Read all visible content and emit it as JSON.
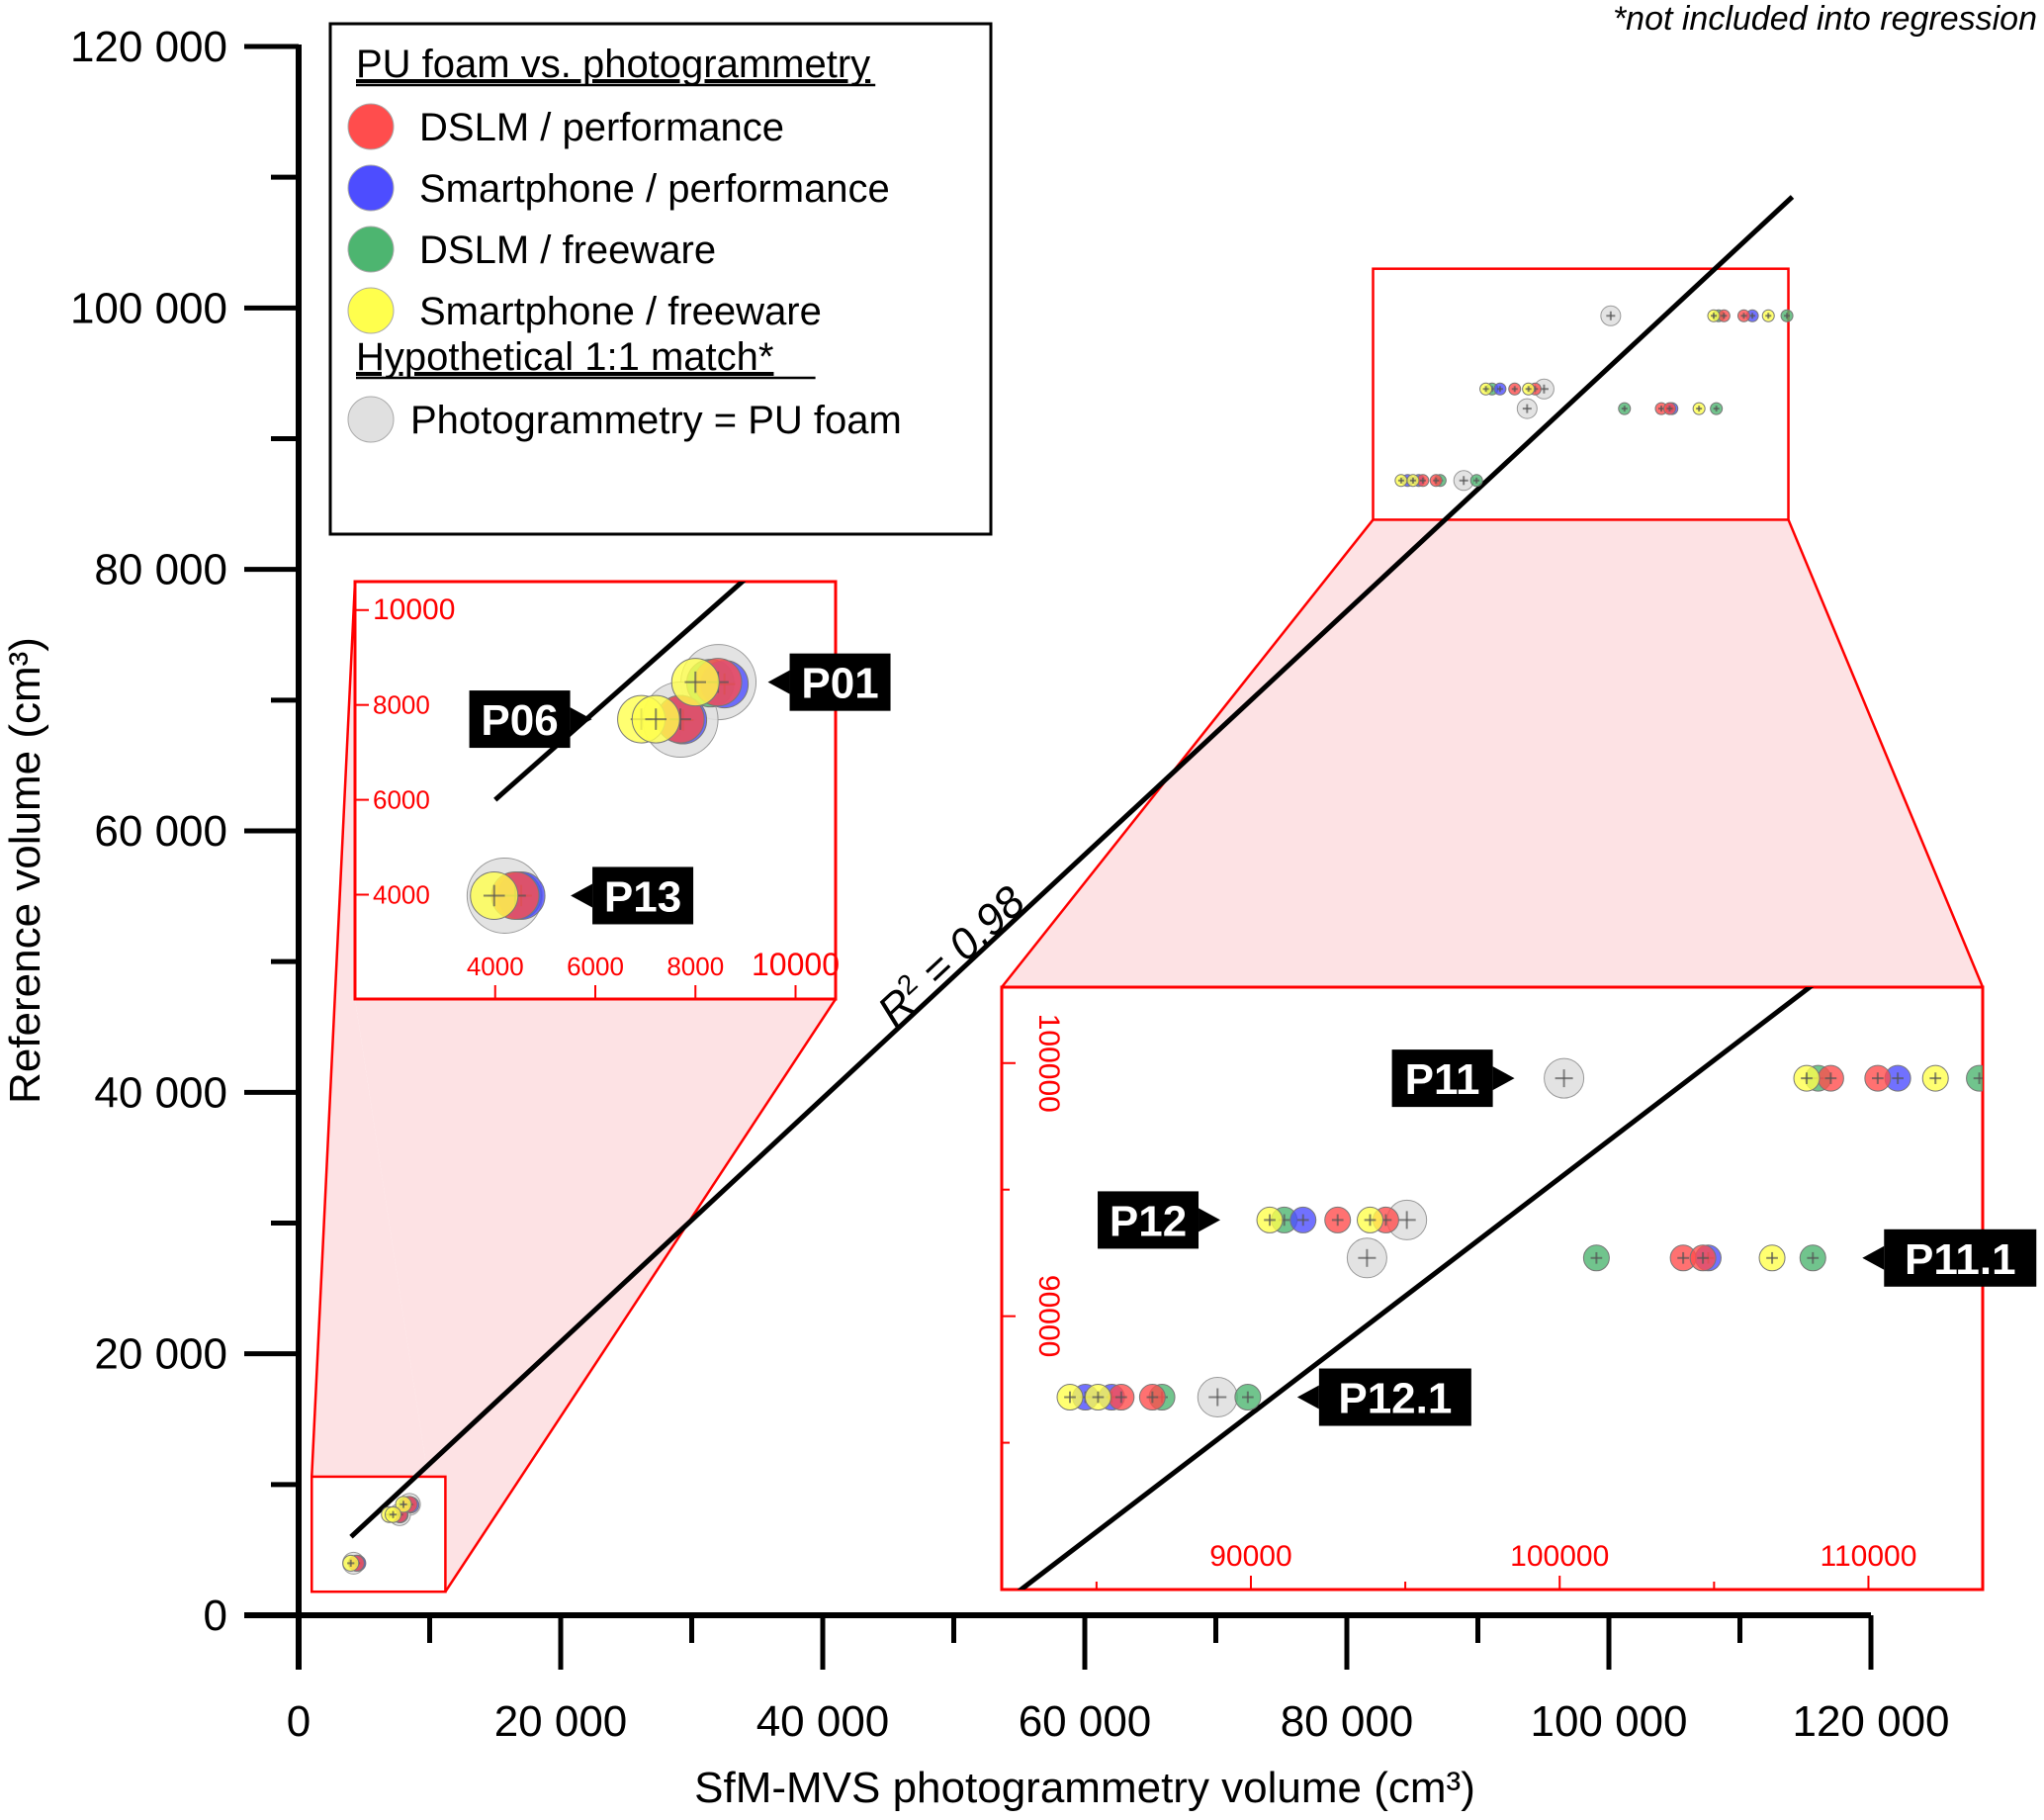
{
  "chart_data": {
    "type": "scatter",
    "title": "",
    "note": "*not included into regression",
    "xlabel": "SfM-MVS photogrammetry volume (cm³)",
    "ylabel": "Reference volume (cm³)",
    "xlim": [
      0,
      120000
    ],
    "ylim": [
      0,
      120000
    ],
    "x_ticks": [
      0,
      20000,
      40000,
      60000,
      80000,
      100000,
      120000
    ],
    "x_tick_labels": [
      "0",
      "20 000",
      "40 000",
      "60 000",
      "80 000",
      "100 000",
      "120 000"
    ],
    "y_ticks": [
      0,
      20000,
      40000,
      60000,
      80000,
      100000,
      120000
    ],
    "y_tick_labels": [
      "0",
      "20 000",
      "40 000",
      "60 000",
      "80 000",
      "100 000",
      "120 000"
    ],
    "minor_tick_step": 10000,
    "grid": false,
    "legend": {
      "placement": "top-left",
      "groups": [
        {
          "title": "PU foam vs. photogrammetry",
          "entries": [
            {
              "label": "DSLM / performance",
              "color": "#ff4d4d",
              "series": "dslm_perf"
            },
            {
              "label": "Smartphone / performance",
              "color": "#4d4dff",
              "series": "phone_perf"
            },
            {
              "label": "DSLM / freeware",
              "color": "#4db570",
              "series": "dslm_free"
            },
            {
              "label": "Smartphone / freeware",
              "color": "#ffff4d",
              "series": "phone_free"
            }
          ]
        },
        {
          "title": "Hypothetical 1:1 match*",
          "entries": [
            {
              "label": "Photogrammetry = PU foam",
              "color": "#e0e0e0",
              "series": "hypothetical"
            }
          ]
        }
      ]
    },
    "regression": {
      "label_prefix": "R",
      "label_sup": "2",
      "label_suffix": " = 0.98",
      "r2": 0.98,
      "from": [
        4000,
        6000
      ],
      "to": [
        114000,
        108500
      ]
    },
    "series": [
      {
        "name": "DSLM / performance",
        "key": "dslm_perf",
        "color": "#ff4d4d",
        "points": [
          {
            "id": "P01",
            "x": 8450,
            "y": 8480
          },
          {
            "id": "P06",
            "x": 7700,
            "y": 7700
          },
          {
            "id": "P13",
            "x": 4400,
            "y": 3980
          },
          {
            "id": "P11",
            "x": 108780,
            "y": 99400
          },
          {
            "id": "P11",
            "x": 110300,
            "y": 99400
          },
          {
            "id": "P11.1",
            "x": 104000,
            "y": 92300
          },
          {
            "id": "P11.1",
            "x": 104640,
            "y": 92300
          },
          {
            "id": "P12",
            "x": 92810,
            "y": 93800
          },
          {
            "id": "P12",
            "x": 94370,
            "y": 93800
          },
          {
            "id": "P12.1",
            "x": 85800,
            "y": 86800
          },
          {
            "id": "P12.1",
            "x": 86810,
            "y": 86800
          }
        ]
      },
      {
        "name": "Smartphone / performance",
        "key": "phone_perf",
        "color": "#4d4dff",
        "points": [
          {
            "id": "P01",
            "x": 8580,
            "y": 8440
          },
          {
            "id": "P06",
            "x": 7750,
            "y": 7680
          },
          {
            "id": "P13",
            "x": 4520,
            "y": 3980
          },
          {
            "id": "P11",
            "x": 110950,
            "y": 99400
          },
          {
            "id": "P11.1",
            "x": 104810,
            "y": 92300
          },
          {
            "id": "P12",
            "x": 91690,
            "y": 93800
          },
          {
            "id": "P12.1",
            "x": 84640,
            "y": 86800
          },
          {
            "id": "P12.1",
            "x": 85490,
            "y": 86800
          }
        ]
      },
      {
        "name": "DSLM / freeware",
        "key": "dslm_free",
        "color": "#4db570",
        "points": [
          {
            "id": "P01",
            "x": 8300,
            "y": 8460
          },
          {
            "id": "P06",
            "x": 7700,
            "y": 7700
          },
          {
            "id": "P13",
            "x": 4450,
            "y": 3980
          },
          {
            "id": "P11",
            "x": 108370,
            "y": 99400
          },
          {
            "id": "P11",
            "x": 113590,
            "y": 99400
          },
          {
            "id": "P11.1",
            "x": 101190,
            "y": 92300
          },
          {
            "id": "P11.1",
            "x": 108200,
            "y": 92300
          },
          {
            "id": "P12",
            "x": 91080,
            "y": 93800
          },
          {
            "id": "P12.1",
            "x": 87120,
            "y": 86800
          },
          {
            "id": "P12.1",
            "x": 89900,
            "y": 86800
          }
        ]
      },
      {
        "name": "Smartphone / freeware",
        "key": "phone_free",
        "color": "#ffff4d",
        "points": [
          {
            "id": "P01",
            "x": 8000,
            "y": 8480
          },
          {
            "id": "P06",
            "x": 6920,
            "y": 7700
          },
          {
            "id": "P06",
            "x": 7210,
            "y": 7700
          },
          {
            "id": "P13",
            "x": 3980,
            "y": 3980
          },
          {
            "id": "P11",
            "x": 108000,
            "y": 99400
          },
          {
            "id": "P11",
            "x": 112170,
            "y": 99400
          },
          {
            "id": "P11.1",
            "x": 106880,
            "y": 92300
          },
          {
            "id": "P12",
            "x": 90610,
            "y": 93800
          },
          {
            "id": "P12",
            "x": 93860,
            "y": 93800
          },
          {
            "id": "P12.1",
            "x": 84140,
            "y": 86800
          },
          {
            "id": "P12.1",
            "x": 85050,
            "y": 86800
          }
        ]
      },
      {
        "name": "Photogrammetry = PU foam",
        "key": "hypothetical",
        "color": "#e0e0e0",
        "points": [
          {
            "id": "P01",
            "x": 8460,
            "y": 8480
          },
          {
            "id": "P06",
            "x": 7700,
            "y": 7690
          },
          {
            "id": "P13",
            "x": 4190,
            "y": 3980
          },
          {
            "id": "P11",
            "x": 100140,
            "y": 99400
          },
          {
            "id": "P11.1",
            "x": 93760,
            "y": 92300
          },
          {
            "id": "P12",
            "x": 95050,
            "y": 93800
          },
          {
            "id": "P12.1",
            "x": 88920,
            "y": 86800
          }
        ]
      }
    ],
    "insets": [
      {
        "name": "small-volume-inset",
        "source_region": {
          "x": [
            1000,
            11200
          ],
          "y": [
            1800,
            10600
          ]
        },
        "xlim": [
          1200,
          10800
        ],
        "ylim": [
          1800,
          10600
        ],
        "x_ticks": [
          4000,
          6000,
          8000,
          10000
        ],
        "x_tick_labels": [
          "4000",
          "6000",
          "8000",
          "10000"
        ],
        "y_ticks": [
          4000,
          6000,
          8000,
          10000
        ],
        "y_tick_labels": [
          "4000",
          "6000",
          "8000",
          "10000"
        ],
        "labels": [
          {
            "text": "P01",
            "x": 8460,
            "y": 8480,
            "side": "right"
          },
          {
            "text": "P06",
            "x": 6920,
            "y": 7700,
            "side": "left"
          },
          {
            "text": "P13",
            "x": 4520,
            "y": 3980,
            "side": "right"
          }
        ]
      },
      {
        "name": "large-volume-inset",
        "source_region": {
          "x": [
            82000,
            113700
          ],
          "y": [
            83800,
            103000
          ]
        },
        "xlim": [
          81930,
          113700
        ],
        "ylim": [
          79200,
          103000
        ],
        "x_ticks": [
          85000,
          90000,
          95000,
          100000,
          105000,
          110000,
          115000
        ],
        "x_tick_labels": [
          "",
          "90000",
          "",
          "100000",
          "",
          "110000",
          ""
        ],
        "y_ticks": [
          85000,
          90000,
          95000,
          100000
        ],
        "y_tick_labels": [
          "",
          "90000",
          "",
          "100000"
        ],
        "labels": [
          {
            "text": "P11",
            "x": 100140,
            "y": 99400,
            "side": "left"
          },
          {
            "text": "P12",
            "x": 90610,
            "y": 93800,
            "side": "left"
          },
          {
            "text": "P11.1",
            "x": 108200,
            "y": 92300,
            "side": "right"
          },
          {
            "text": "P12.1",
            "x": 89900,
            "y": 86800,
            "side": "right"
          }
        ]
      }
    ]
  }
}
